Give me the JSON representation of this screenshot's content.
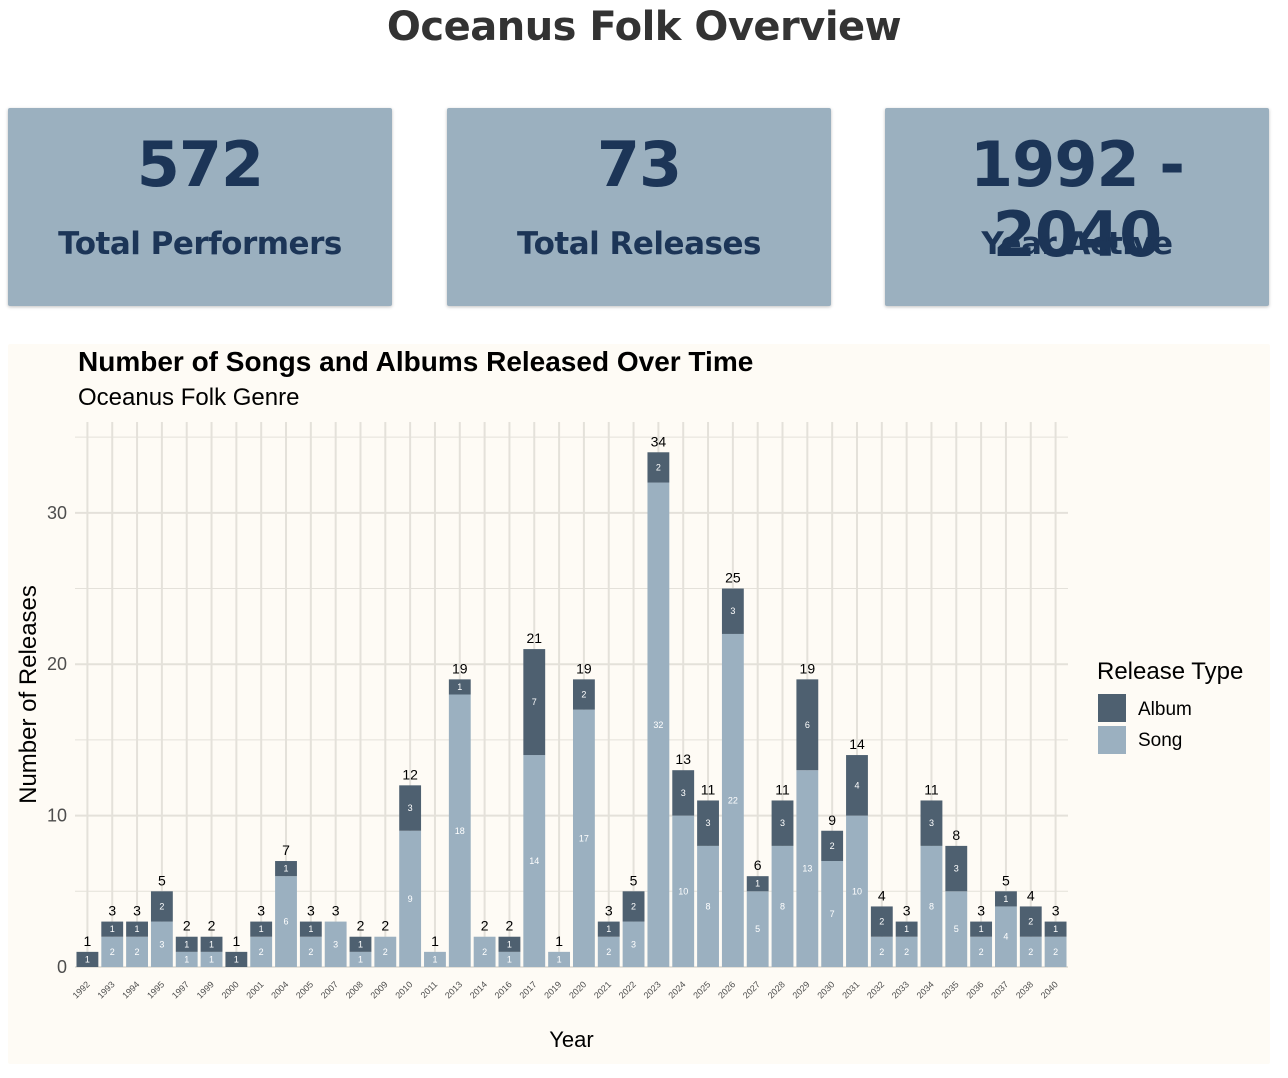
{
  "page": {
    "title": "Oceanus Folk Overview"
  },
  "kpis": [
    {
      "value": "572",
      "label": "Total Performers"
    },
    {
      "value": "73",
      "label": "Total Releases"
    },
    {
      "value": "1992 - 2040",
      "label": "Year Active"
    }
  ],
  "colors": {
    "album": "#4e6070",
    "song": "#9bb0c0",
    "card_bg": "#9bb0bf",
    "card_text": "#1c3557",
    "panel_bg": "#fefbf5",
    "grid": "#e4e1da"
  },
  "chart_data": {
    "type": "bar",
    "stacked": true,
    "title": "Number of Songs and Albums Released Over Time",
    "subtitle": "Oceanus Folk Genre",
    "xlabel": "Year",
    "ylabel": "Number of Releases",
    "ylim": [
      0,
      36
    ],
    "yticks": [
      0,
      10,
      20,
      30
    ],
    "grid": true,
    "legend": {
      "title": "Release Type",
      "position": "right"
    },
    "categories": [
      "1992",
      "1993",
      "1994",
      "1995",
      "1997",
      "1999",
      "2000",
      "2001",
      "2004",
      "2005",
      "2007",
      "2008",
      "2009",
      "2010",
      "2011",
      "2013",
      "2014",
      "2016",
      "2017",
      "2019",
      "2020",
      "2021",
      "2022",
      "2023",
      "2024",
      "2025",
      "2026",
      "2027",
      "2028",
      "2029",
      "2030",
      "2031",
      "2032",
      "2033",
      "2034",
      "2035",
      "2036",
      "2037",
      "2038",
      "2040"
    ],
    "series": [
      {
        "name": "Song",
        "values": [
          0,
          2,
          2,
          3,
          1,
          1,
          0,
          2,
          6,
          2,
          3,
          1,
          2,
          9,
          1,
          18,
          2,
          1,
          14,
          1,
          17,
          2,
          3,
          32,
          10,
          8,
          22,
          5,
          8,
          13,
          7,
          10,
          2,
          2,
          8,
          5,
          2,
          4,
          2,
          2
        ]
      },
      {
        "name": "Album",
        "values": [
          1,
          1,
          1,
          2,
          1,
          1,
          1,
          1,
          1,
          1,
          0,
          1,
          0,
          3,
          0,
          1,
          0,
          1,
          7,
          0,
          2,
          1,
          2,
          2,
          3,
          3,
          3,
          1,
          3,
          6,
          2,
          4,
          2,
          1,
          3,
          3,
          1,
          1,
          2,
          1
        ]
      }
    ],
    "totals": [
      1,
      3,
      3,
      5,
      2,
      2,
      1,
      3,
      7,
      3,
      3,
      2,
      2,
      12,
      1,
      19,
      2,
      2,
      21,
      1,
      19,
      3,
      5,
      34,
      13,
      11,
      25,
      6,
      11,
      19,
      9,
      14,
      4,
      3,
      11,
      8,
      3,
      5,
      4,
      3
    ]
  }
}
